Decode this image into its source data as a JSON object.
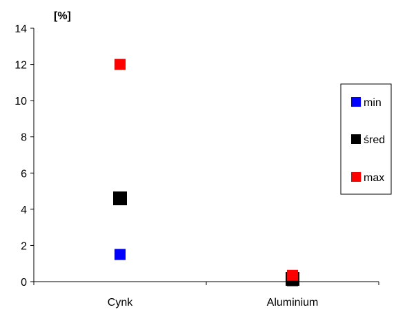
{
  "chart_data": {
    "type": "scatter",
    "title": "",
    "xlabel": "",
    "ylabel": "[%]",
    "categories": [
      "Cynk",
      "Aluminium"
    ],
    "ylim": [
      0,
      14
    ],
    "yticks": [
      0,
      2,
      4,
      6,
      8,
      10,
      12,
      14
    ],
    "grid": false,
    "legend_position": "right",
    "series": [
      {
        "name": "min",
        "color": "#0000ff",
        "values": [
          1.5,
          0.05
        ]
      },
      {
        "name": "śred",
        "color": "#000000",
        "values": [
          4.6,
          0.15
        ]
      },
      {
        "name": "max",
        "color": "#ff0000",
        "values": [
          12.0,
          0.35
        ]
      }
    ]
  }
}
